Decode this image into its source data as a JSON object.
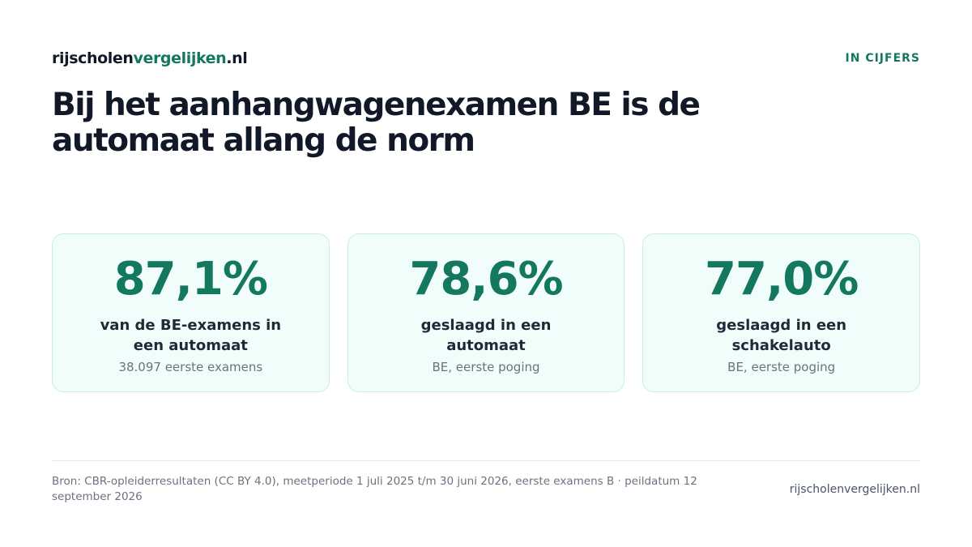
{
  "header": {
    "logo_part1": "rijscholen",
    "logo_part2": "vergelijken",
    "logo_part3": ".nl",
    "tag": "IN CIJFERS"
  },
  "title": "Bij het aanhangwagenexamen BE is de automaat allang de norm",
  "stats": [
    {
      "value": "87,1%",
      "label": "van de BE-examens in een automaat",
      "sub": "38.097 eerste examens"
    },
    {
      "value": "78,6%",
      "label": "geslaagd in een automaat",
      "sub": "BE, eerste poging"
    },
    {
      "value": "77,0%",
      "label": "geslaagd in een schakelauto",
      "sub": "BE, eerste poging"
    }
  ],
  "footer": {
    "source": "Bron: CBR-opleiderresultaten (CC BY 4.0), meetperiode 1 juli 2025 t/m 30 juni 2026, eerste examens B · peildatum 12 september 2026",
    "site": "rijscholenvergelijken.nl"
  },
  "colors": {
    "accent": "#14775f",
    "card_background": "#f1fdfa",
    "card_border": "#c8efe3",
    "text_dark": "#111827",
    "text_muted": "#6b7280"
  }
}
